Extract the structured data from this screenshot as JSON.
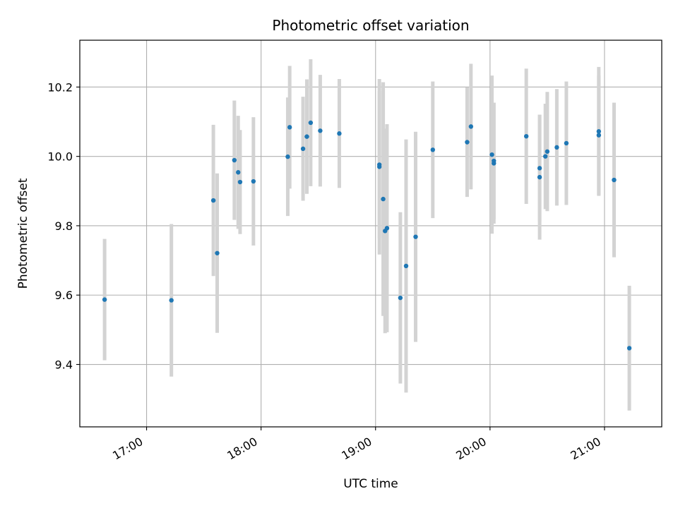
{
  "chart_data": {
    "type": "scatter",
    "title": "Photometric offset variation",
    "xlabel": "UTC time",
    "ylabel": "Photometric offset",
    "x_is_time": true,
    "xlim": [
      "16:25",
      "21:30"
    ],
    "ylim": [
      9.22,
      10.335
    ],
    "x_ticks": [
      "17:00",
      "18:00",
      "19:00",
      "20:00",
      "21:00"
    ],
    "y_ticks": [
      9.4,
      9.6,
      9.8,
      10.0,
      10.2
    ],
    "y_tick_labels": [
      "9.4",
      "9.6",
      "9.8",
      "10.0",
      "10.2"
    ],
    "grid": true,
    "point_color": "#1f77b4",
    "errorbar_color": "#d3d3d3",
    "points": [
      {
        "t": "16:38",
        "y": 9.587,
        "err": 0.175
      },
      {
        "t": "17:13",
        "y": 9.585,
        "err": 0.22
      },
      {
        "t": "17:35",
        "y": 9.873,
        "err": 0.218
      },
      {
        "t": "17:37",
        "y": 9.721,
        "err": 0.23
      },
      {
        "t": "17:46",
        "y": 9.989,
        "err": 0.172
      },
      {
        "t": "17:48",
        "y": 9.954,
        "err": 0.163
      },
      {
        "t": "17:49",
        "y": 9.926,
        "err": 0.15
      },
      {
        "t": "17:56",
        "y": 9.928,
        "err": 0.185
      },
      {
        "t": "18:14",
        "y": 9.999,
        "err": 0.171
      },
      {
        "t": "18:15",
        "y": 10.084,
        "err": 0.177
      },
      {
        "t": "18:22",
        "y": 10.022,
        "err": 0.15
      },
      {
        "t": "18:24",
        "y": 10.057,
        "err": 0.165
      },
      {
        "t": "18:26",
        "y": 10.097,
        "err": 0.183
      },
      {
        "t": "18:31",
        "y": 10.074,
        "err": 0.161
      },
      {
        "t": "18:41",
        "y": 10.066,
        "err": 0.157
      },
      {
        "t": "19:02",
        "y": 9.97,
        "err": 0.253
      },
      {
        "t": "19:02",
        "y": 9.976,
        "err": 0.212
      },
      {
        "t": "19:04",
        "y": 9.877,
        "err": 0.337
      },
      {
        "t": "19:05",
        "y": 9.785,
        "err": 0.295
      },
      {
        "t": "19:06",
        "y": 9.793,
        "err": 0.3
      },
      {
        "t": "19:13",
        "y": 9.592,
        "err": 0.247
      },
      {
        "t": "19:16",
        "y": 9.684,
        "err": 0.365
      },
      {
        "t": "19:21",
        "y": 9.768,
        "err": 0.303
      },
      {
        "t": "19:30",
        "y": 10.019,
        "err": 0.197
      },
      {
        "t": "19:48",
        "y": 10.041,
        "err": 0.158
      },
      {
        "t": "19:50",
        "y": 10.086,
        "err": 0.181
      },
      {
        "t": "20:01",
        "y": 10.005,
        "err": 0.228
      },
      {
        "t": "20:02",
        "y": 9.987,
        "err": 0.168
      },
      {
        "t": "20:02",
        "y": 9.98,
        "err": 0.174
      },
      {
        "t": "20:19",
        "y": 10.058,
        "err": 0.195
      },
      {
        "t": "20:26",
        "y": 9.966,
        "err": 0.154
      },
      {
        "t": "20:26",
        "y": 9.94,
        "err": 0.18
      },
      {
        "t": "20:29",
        "y": 10.0,
        "err": 0.152
      },
      {
        "t": "20:30",
        "y": 10.014,
        "err": 0.172
      },
      {
        "t": "20:35",
        "y": 10.026,
        "err": 0.168
      },
      {
        "t": "20:40",
        "y": 10.038,
        "err": 0.178
      },
      {
        "t": "20:57",
        "y": 10.072,
        "err": 0.186
      },
      {
        "t": "20:57",
        "y": 10.061,
        "err": 0.172
      },
      {
        "t": "21:05",
        "y": 9.932,
        "err": 0.223
      },
      {
        "t": "21:13",
        "y": 9.447,
        "err": 0.18
      }
    ]
  }
}
